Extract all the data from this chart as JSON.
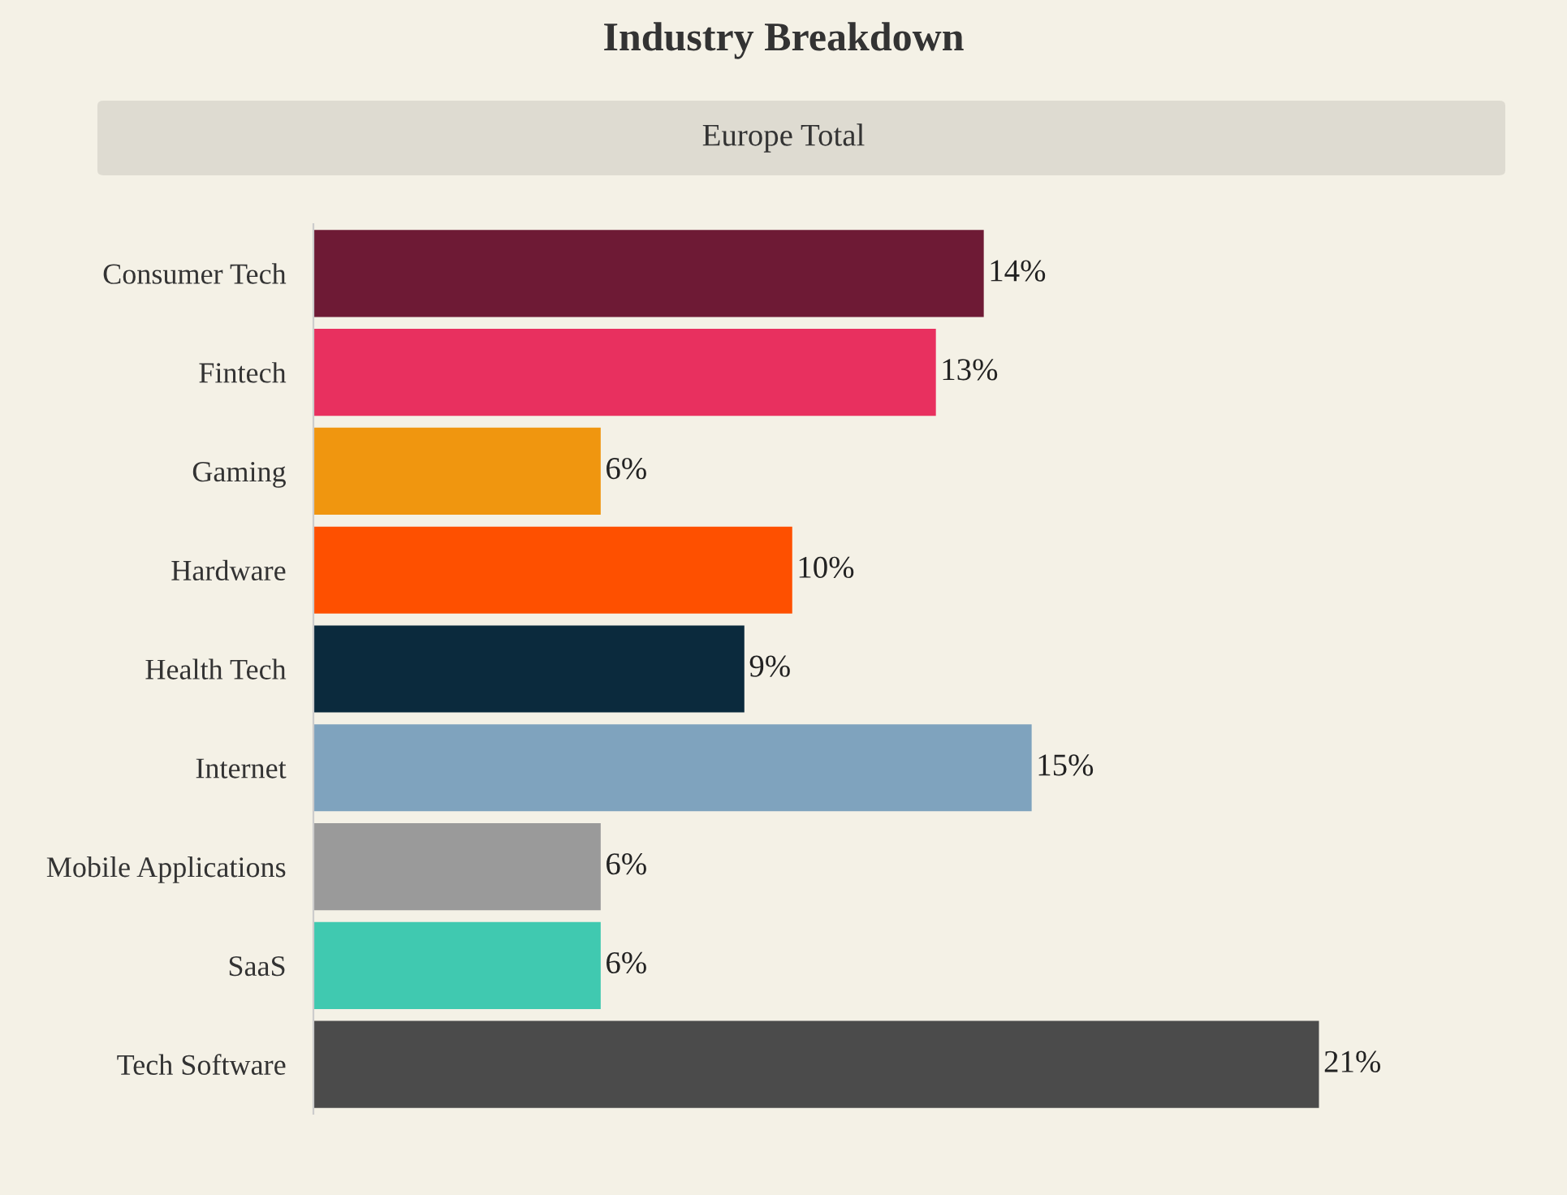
{
  "chart_data": {
    "type": "bar",
    "orientation": "horizontal",
    "title": "Industry Breakdown",
    "subtitle": "Europe Total",
    "categories": [
      "Consumer Tech",
      "Fintech",
      "Gaming",
      "Hardware",
      "Health Tech",
      "Internet",
      "Mobile Applications",
      "SaaS",
      "Tech Software"
    ],
    "values": [
      14,
      13,
      6,
      10,
      9,
      15,
      6,
      6,
      21
    ],
    "value_labels": [
      "14%",
      "13%",
      "6%",
      "10%",
      "9%",
      "15%",
      "6%",
      "6%",
      "21%"
    ],
    "colors": [
      "#6e1a35",
      "#e8305f",
      "#f0960f",
      "#fe5000",
      "#0b2a3d",
      "#7fa3be",
      "#9a9a9a",
      "#40c9b0",
      "#4b4b4b"
    ],
    "grid": false,
    "legend": false
  }
}
